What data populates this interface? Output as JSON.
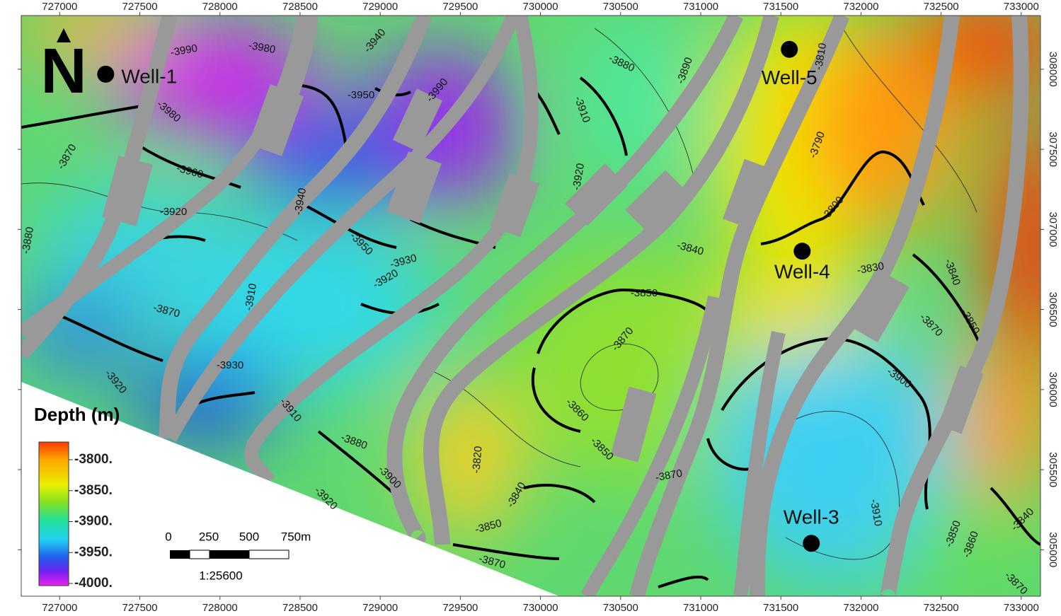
{
  "map": {
    "xlim": [
      726760,
      733120
    ],
    "ylim": [
      304710,
      308335
    ],
    "xticks": [
      727000,
      727500,
      728000,
      728500,
      729000,
      729500,
      730000,
      730500,
      731000,
      731500,
      732000,
      732500,
      733000
    ],
    "yticks": [
      305000,
      305500,
      306000,
      306500,
      307000,
      307500,
      308000
    ],
    "north": "N",
    "wells": [
      {
        "name": "Well-1",
        "x": 727287,
        "y": 307969
      },
      {
        "name": "Well-5",
        "x": 731553,
        "y": 308124
      },
      {
        "name": "Well-4",
        "x": 731633,
        "y": 306864
      },
      {
        "name": "Well-3",
        "x": 731690,
        "y": 305040
      }
    ],
    "contour_labels": [
      -3990,
      -3980,
      -3940,
      -3950,
      -3990,
      -3980,
      -3960,
      -3870,
      -3880,
      -3920,
      -3880,
      -3890,
      -3910,
      -3920,
      -3940,
      -3950,
      -3930,
      -3920,
      -3910,
      -3870,
      -3920,
      -3930,
      -3910,
      -3880,
      -3900,
      -3920,
      -3840,
      -3850,
      -3870,
      -3860,
      -3850,
      -3870,
      -3820,
      -3840,
      -3850,
      -3870,
      -3810,
      -3790,
      -3800,
      -3830,
      -3840,
      -3850,
      -3870,
      -3900,
      -3910,
      -3850,
      -3860,
      -3840,
      -3870
    ],
    "legend": {
      "title": "Depth (m)",
      "labels": [
        "-3800.",
        "-3850.",
        "-3900.",
        "-3950.",
        "-4000."
      ]
    },
    "scale_bar": {
      "labels": [
        "0",
        "250",
        "500",
        "750m"
      ],
      "ratio": "1:25600"
    }
  }
}
